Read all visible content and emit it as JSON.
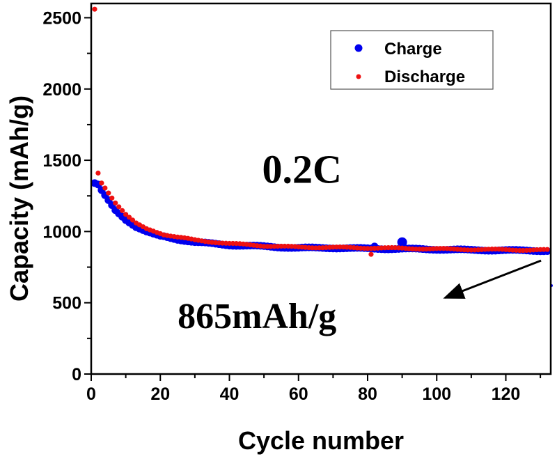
{
  "chart_data": {
    "type": "scatter",
    "title": "",
    "xlabel": "Cycle number",
    "ylabel": "Capacity (mAh/g)",
    "xlim": [
      0,
      133
    ],
    "ylim": [
      0,
      2600
    ],
    "xticks": [
      0,
      20,
      40,
      60,
      80,
      100,
      120
    ],
    "yticks": [
      0,
      500,
      1000,
      1500,
      2000,
      2500
    ],
    "xminor_step": 10,
    "yminor_step": 250,
    "grid": false,
    "legend": {
      "position": "top-right",
      "entries": [
        "Charge",
        "Discharge"
      ]
    },
    "colors": {
      "Charge": "#0000ee",
      "Discharge": "#ee1111"
    },
    "annotations": [
      {
        "text": "0.2C",
        "x": 61,
        "y": 1440
      },
      {
        "text": "865mAh/g",
        "x": 48,
        "y": 420,
        "arrow_from": [
          102,
          545
        ],
        "arrow_to": [
          131,
          845
        ]
      }
    ],
    "series": [
      {
        "name": "Charge",
        "description": "Starts ~1340 mAh/g, decays to ~950 by cycle 25, plateaus ~880-865 through cycle 132; outlier ~925 at cycle 90",
        "keypoints_x": [
          1,
          2,
          3,
          5,
          7,
          10,
          13,
          16,
          20,
          25,
          30,
          40,
          50,
          60,
          70,
          80,
          90,
          100,
          110,
          120,
          132
        ],
        "keypoints_y": [
          1340,
          1330,
          1290,
          1220,
          1150,
          1080,
          1030,
          1000,
          970,
          945,
          925,
          905,
          895,
          885,
          885,
          880,
          878,
          875,
          870,
          868,
          865
        ],
        "outliers": [
          {
            "x": 90,
            "y": 925
          },
          {
            "x": 82,
            "y": 895
          }
        ]
      },
      {
        "name": "Discharge",
        "description": "First cycle ~2560 mAh/g, cycle 2 ~1410, decays to ~960 by cycle 25, plateaus ~870 at cycle 132; outlier ~840 at cycle 81",
        "keypoints_x": [
          1,
          2,
          3,
          5,
          7,
          10,
          13,
          16,
          20,
          25,
          30,
          40,
          50,
          60,
          70,
          80,
          90,
          100,
          110,
          120,
          132
        ],
        "keypoints_y": [
          2560,
          1410,
          1340,
          1270,
          1200,
          1120,
          1060,
          1020,
          985,
          960,
          940,
          915,
          900,
          890,
          888,
          885,
          882,
          878,
          874,
          872,
          870
        ],
        "outliers": [
          {
            "x": 81,
            "y": 840
          }
        ]
      }
    ]
  }
}
